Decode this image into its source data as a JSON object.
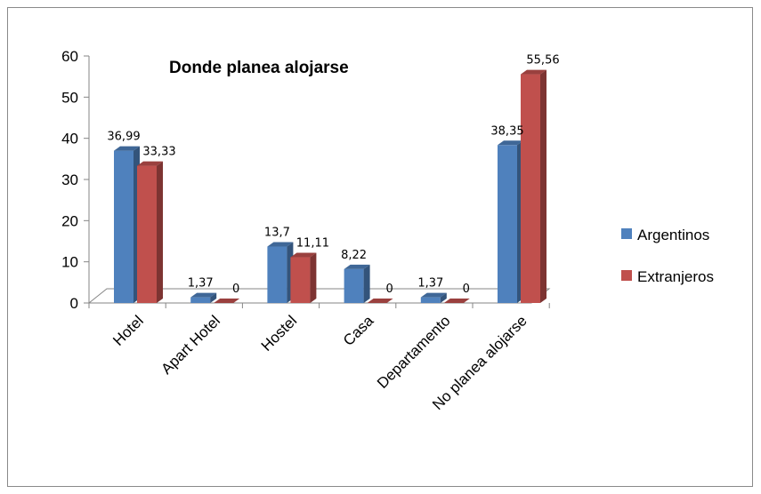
{
  "chart_data": {
    "type": "bar",
    "title": "Donde planea alojarse",
    "categories": [
      "Hotel",
      "Apart Hotel",
      "Hostel",
      "Casa",
      "Departamento",
      "No planea alojarse"
    ],
    "series": [
      {
        "name": "Argentinos",
        "values": [
          36.99,
          1.37,
          13.7,
          8.22,
          1.37,
          38.35
        ],
        "labels": [
          "36,99",
          "1,37",
          "13,7",
          "8,22",
          "1,37",
          "38,35"
        ],
        "color": "#4F81BD"
      },
      {
        "name": "Extranjeros",
        "values": [
          33.33,
          0,
          11.11,
          0,
          0,
          55.56
        ],
        "labels": [
          "33,33",
          "0",
          "11,11",
          "0",
          "0",
          "55,56"
        ],
        "color": "#C0504D"
      }
    ],
    "ylim": [
      0,
      60
    ],
    "yticks": [
      "0",
      "10",
      "20",
      "30",
      "40",
      "50",
      "60"
    ],
    "legend_position": "right",
    "grid": false
  }
}
